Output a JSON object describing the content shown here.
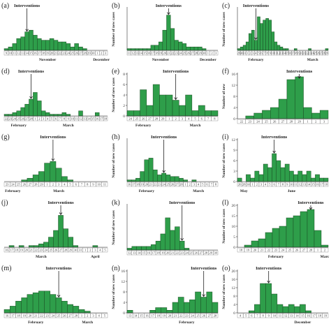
{
  "labels": {
    "interventions": "Interventions",
    "ylabel": "Number of new cases",
    "ylabel_f": "Number of new"
  },
  "chart_data": [
    {
      "panel": "(a)",
      "type": "bar",
      "ylabel": "",
      "ylim": [
        0,
        25
      ],
      "yticks": [],
      "x": [
        "9",
        "10",
        "11",
        "12",
        "13",
        "14",
        "15",
        "16",
        "17",
        "18",
        "19",
        "20",
        "21",
        "22",
        "23",
        "24",
        "25",
        "26",
        "27",
        "28",
        "29",
        "30",
        "1",
        "2",
        "3"
      ],
      "values": [
        1,
        2,
        4,
        7,
        8,
        11,
        12,
        9,
        7,
        6,
        6,
        7,
        6,
        5,
        5,
        4,
        2,
        4,
        2,
        1,
        0,
        0,
        0,
        0,
        0
      ],
      "months": [
        {
          "label": "November",
          "at": 10
        },
        {
          "label": "December",
          "at": 23
        }
      ],
      "intervention_index": 5
    },
    {
      "panel": "(b)",
      "type": "bar",
      "ylabel": "Number of new cases",
      "ylim": [
        0,
        25
      ],
      "yticks": [],
      "x": [
        "11",
        "12",
        "13",
        "14",
        "15",
        "16",
        "17",
        "18",
        "19",
        "20",
        "21",
        "22",
        "23",
        "24",
        "25",
        "26",
        "27",
        "28",
        "29",
        "30",
        "1",
        "2",
        "3"
      ],
      "values": [
        1,
        1,
        1,
        1,
        1,
        1,
        3,
        3,
        5,
        12,
        21,
        13,
        6,
        5,
        4,
        2,
        2,
        2,
        2,
        1,
        0,
        0,
        0
      ],
      "months": [
        {
          "label": "November",
          "at": 8
        },
        {
          "label": "December",
          "at": 20
        }
      ],
      "intervention_index": 10
    },
    {
      "panel": "(c)",
      "type": "bar",
      "ylabel": "Number of new cases",
      "ylim": [
        0,
        25
      ],
      "yticks": [],
      "x": [
        "29",
        "30",
        "31",
        "1",
        "2",
        "3",
        "4",
        "5",
        "6",
        "7",
        "8",
        "9",
        "10",
        "11",
        "12",
        "13",
        "14",
        "15",
        "16",
        "17",
        "18",
        "19",
        "20",
        "21",
        "22",
        "23",
        "24",
        "25",
        "26",
        "27",
        "28",
        "29"
      ],
      "values": [
        1,
        2,
        3,
        5,
        10,
        12,
        6,
        20,
        16,
        18,
        19,
        18,
        11,
        5,
        3,
        2,
        1,
        1,
        0,
        0,
        1,
        0,
        0,
        0,
        0,
        1,
        0,
        0,
        0,
        0,
        0,
        1
      ],
      "months": [
        {
          "label": "February",
          "at": 6
        },
        {
          "label": "March",
          "at": 26
        }
      ],
      "intervention_index": 6
    },
    {
      "panel": "(d)",
      "type": "bar",
      "ylabel": "",
      "ylim": [
        0,
        25
      ],
      "yticks": [],
      "x": [
        "22",
        "23",
        "24",
        "25",
        "26",
        "27",
        "28",
        "1",
        "2",
        "3",
        "4",
        "5",
        "6",
        "7",
        "8",
        "9",
        "10",
        "11",
        "12",
        "13",
        "14",
        "15",
        "16",
        "17",
        "18"
      ],
      "values": [
        1,
        1,
        2,
        3,
        5,
        7,
        10,
        14,
        9,
        3,
        2,
        1,
        1,
        1,
        2,
        1,
        0,
        0,
        3,
        0,
        0,
        0,
        2,
        0,
        0
      ],
      "months": [
        {
          "label": "February",
          "at": 3
        },
        {
          "label": "March",
          "at": 15
        }
      ],
      "intervention_index": 6
    },
    {
      "panel": "(e)",
      "type": "bar",
      "ylabel": "Number of new cases",
      "ylim": [
        0,
        8
      ],
      "yticks": [
        0,
        2,
        4,
        6,
        8
      ],
      "x": [
        "24",
        "25",
        "26",
        "27",
        "28",
        "29",
        "1",
        "2",
        "3",
        "4",
        "5",
        "6",
        "7",
        "8"
      ],
      "values": [
        1,
        1,
        5,
        2,
        6,
        4,
        4,
        3,
        2,
        4,
        1,
        2,
        1,
        1
      ],
      "months": [
        {
          "label": "February",
          "at": 2
        },
        {
          "label": "March",
          "at": 10
        }
      ],
      "intervention_index": 7
    },
    {
      "panel": "(f)",
      "type": "bar",
      "ylabel": "Number of new",
      "ylim": [
        0,
        16
      ],
      "yticks": [
        0,
        4,
        8,
        12,
        16
      ],
      "x": [
        "22",
        "23",
        "24",
        "25",
        "26",
        "27",
        "28",
        "29",
        "1",
        "2",
        "3"
      ],
      "values": [
        0,
        1,
        2,
        3,
        4,
        7,
        14,
        15,
        4,
        2,
        3
      ],
      "months": [],
      "intervention_index": 7
    },
    {
      "panel": "(g)",
      "type": "bar",
      "ylabel": "",
      "ylim": [
        0,
        25
      ],
      "yticks": [],
      "x": [
        "23",
        "24",
        "25",
        "26",
        "27",
        "28",
        "29",
        "1",
        "2",
        "3",
        "4",
        "5",
        "6",
        "7",
        "8",
        "9",
        "10",
        "11"
      ],
      "values": [
        0,
        0,
        0,
        1,
        2,
        4,
        6,
        11,
        12,
        8,
        3,
        1,
        0,
        0,
        0,
        0,
        0,
        0
      ],
      "months": [
        {
          "label": "February",
          "at": 1
        },
        {
          "label": "March",
          "at": 9
        }
      ],
      "intervention_index": 8
    },
    {
      "panel": "(h)",
      "type": "bar",
      "ylabel": "Number of new cases",
      "ylim": [
        0,
        25
      ],
      "yticks": [],
      "x": [
        "16",
        "17",
        "18",
        "19",
        "20",
        "21",
        "22",
        "23",
        "24",
        "25",
        "26",
        "27",
        "28",
        "1",
        "2",
        "3",
        "4",
        "5",
        "6",
        "7",
        "8"
      ],
      "values": [
        1,
        1,
        2,
        6,
        13,
        14,
        7,
        4,
        5,
        4,
        3,
        3,
        2,
        1,
        0,
        1,
        0,
        0,
        0,
        0,
        0
      ],
      "months": [
        {
          "label": "February",
          "at": 4
        },
        {
          "label": "March",
          "at": 16
        }
      ],
      "intervention_index": 8
    },
    {
      "panel": "(i)",
      "type": "bar",
      "ylabel": "Number of new cases",
      "ylim": [
        0,
        12
      ],
      "yticks": [
        0,
        3,
        6,
        9,
        12
      ],
      "x": [
        "26",
        "28",
        "30",
        "1",
        "2",
        "3",
        "4",
        "5",
        "6",
        "7",
        "8",
        "9",
        "10",
        "11",
        "12",
        "13",
        "14",
        "15",
        "16",
        "17",
        "18"
      ],
      "values": [
        1,
        0,
        2,
        1,
        3,
        2,
        5,
        4,
        8,
        6,
        4,
        5,
        3,
        2,
        3,
        2,
        3,
        1,
        2,
        1,
        1
      ],
      "months": [
        {
          "label": "May",
          "at": 1
        },
        {
          "label": "June",
          "at": 12
        }
      ],
      "intervention_index": 8
    },
    {
      "panel": "(j)",
      "type": "bar",
      "ylabel": "",
      "ylim": [
        0,
        25
      ],
      "yticks": [],
      "x": [
        "16",
        "17",
        "18",
        "19",
        "20",
        "21",
        "22",
        "23",
        "24",
        "25",
        "26",
        "27",
        "28",
        "29",
        "30",
        "31",
        "1",
        "2",
        "3",
        "4",
        "5"
      ],
      "values": [
        0,
        1,
        0,
        1,
        0,
        1,
        1,
        2,
        3,
        6,
        10,
        19,
        11,
        6,
        1,
        0,
        0,
        0,
        1,
        0,
        0
      ],
      "months": [
        {
          "label": "March",
          "at": 7
        },
        {
          "label": "April",
          "at": 18
        }
      ],
      "intervention_index": 11
    },
    {
      "panel": "(k)",
      "type": "bar",
      "ylabel": "Number of new cases",
      "ylim": [
        0,
        25
      ],
      "yticks": [],
      "x": [
        "12",
        "13",
        "14",
        "15",
        "16",
        "17",
        "18",
        "19",
        "20",
        "21",
        "22",
        "23",
        "24",
        "25",
        "26",
        "27",
        "28",
        "29",
        "30"
      ],
      "values": [
        1,
        2,
        2,
        2,
        2,
        3,
        5,
        9,
        18,
        11,
        13,
        5,
        1,
        0,
        0,
        0,
        0,
        0,
        0
      ],
      "months": [],
      "intervention_index": 11
    },
    {
      "panel": "(l)",
      "type": "bar",
      "ylabel": "Number of new cases",
      "ylim": [
        0,
        20
      ],
      "yticks": [
        0,
        5,
        10,
        15,
        20
      ],
      "x": [
        "18",
        "19",
        "20",
        "21",
        "22",
        "23",
        "24",
        "25",
        "26",
        "27",
        "28",
        "1",
        "2"
      ],
      "values": [
        0,
        1,
        3,
        4,
        7,
        9,
        10,
        14,
        15,
        17,
        18,
        8,
        1
      ],
      "months": [
        {
          "label": "February",
          "at": 5
        },
        {
          "label": "Marc",
          "at": 12
        }
      ],
      "intervention_index": 10
    },
    {
      "panel": "(m)",
      "type": "bar",
      "ylabel": "",
      "ylim": [
        0,
        25
      ],
      "yticks": [],
      "x": [
        "16",
        "17",
        "18",
        "19",
        "20",
        "21",
        "22",
        "23",
        "24",
        "25",
        "26",
        "27",
        "28",
        "1",
        "2",
        "3",
        "4",
        "5"
      ],
      "values": [
        2,
        4,
        7,
        9,
        11,
        12,
        13,
        13,
        11,
        9,
        7,
        5,
        4,
        2,
        1,
        0,
        0,
        0
      ],
      "months": [
        {
          "label": "February",
          "at": 5
        },
        {
          "label": "March",
          "at": 14
        }
      ],
      "intervention_index": 9
    },
    {
      "panel": "(n)",
      "type": "bar",
      "ylabel": "Number of new cases",
      "ylim": [
        0,
        16
      ],
      "yticks": [
        0,
        4,
        8,
        12,
        16
      ],
      "x": [
        "13",
        "14",
        "15",
        "16",
        "17",
        "18",
        "19",
        "20",
        "21",
        "22",
        "23",
        "24",
        "25",
        "26",
        "27",
        "28"
      ],
      "values": [
        1,
        0,
        0,
        0,
        1,
        2,
        2,
        1,
        4,
        6,
        4,
        5,
        8,
        6,
        8,
        4
      ],
      "months": [
        {
          "label": "February",
          "at": 10
        }
      ],
      "intervention_index": 13
    },
    {
      "panel": "(o)",
      "type": "bar",
      "ylabel": "Number of new cases",
      "ylim": [
        0,
        20
      ],
      "yticks": [
        0,
        4,
        8,
        12,
        16,
        20
      ],
      "x": [
        "4",
        "5",
        "6",
        "7",
        "8",
        "9",
        "10",
        "11",
        "12",
        "13",
        "14",
        "15",
        "16",
        "17",
        "18",
        "19"
      ],
      "values": [
        0,
        0,
        1,
        4,
        14,
        14,
        9,
        4,
        3,
        4,
        3,
        4,
        1,
        0,
        0,
        0
      ],
      "months": [
        {
          "label": "December",
          "at": 11
        }
      ],
      "intervention_index": 5
    }
  ]
}
